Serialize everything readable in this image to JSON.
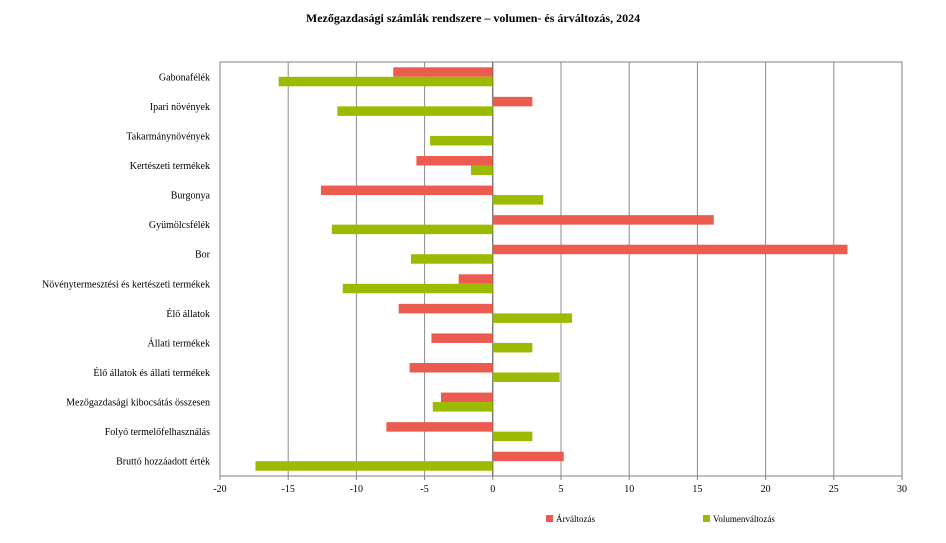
{
  "chart_data": {
    "type": "bar",
    "orientation": "horizontal",
    "title": "Mezőgazdasági számlák rendszere – volumen- és árváltozás, 2024",
    "categories": [
      "Gabonafélék",
      "Ipari növények",
      "Takarmánynövények",
      "Kertészeti termékek",
      "Burgonya",
      "Gyümölcsfélék",
      "Bor",
      "Növénytermesztési és kertészeti termékek",
      "Élő állatok",
      "Állati termékek",
      "Élő állatok és állati termékek",
      "Mezőgazdasági kibocsátás összesen",
      "Folyó termelőfelhasználás",
      "Bruttó hozzáadott érték"
    ],
    "series": [
      {
        "name": "Árváltozás",
        "color": "#ec5b4f",
        "values": [
          -7.3,
          2.9,
          0,
          -5.6,
          -12.6,
          16.2,
          26.0,
          -2.5,
          -6.9,
          -4.5,
          -6.1,
          -3.8,
          -7.8,
          5.2
        ]
      },
      {
        "name": "Volumenváltozás",
        "color": "#9bbb00",
        "values": [
          -15.7,
          -11.4,
          -4.6,
          -1.6,
          3.7,
          -11.8,
          -6.0,
          -11.0,
          5.8,
          2.9,
          4.9,
          -4.4,
          2.9,
          -17.4
        ]
      }
    ],
    "xlim": [
      -20,
      30
    ],
    "xticks": [
      "-20",
      "-15",
      "-10",
      "-5",
      "0",
      "5",
      "10",
      "15",
      "20",
      "25",
      "30"
    ],
    "xtick_values": [
      -20,
      -15,
      -10,
      -5,
      0,
      5,
      10,
      15,
      20,
      25,
      30
    ],
    "grid": true,
    "legend_position": "bottom"
  }
}
